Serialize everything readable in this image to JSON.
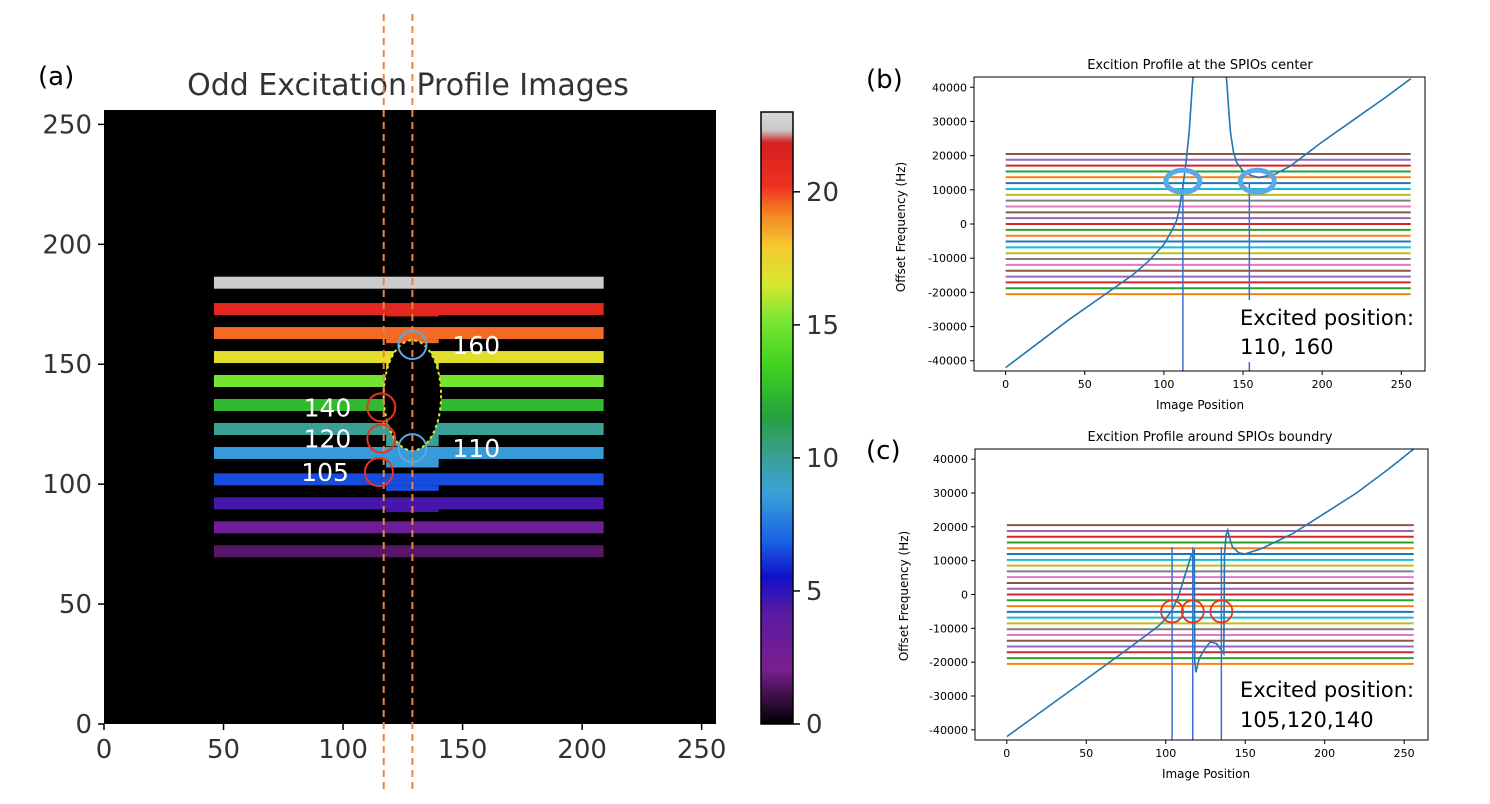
{
  "colors": {
    "axis": "#000000",
    "curve": "#1f77b4",
    "guide_line": "#3a6fd0",
    "dashed": "#e8864a",
    "red_circle": "#e8341c",
    "blue_circle": "#5aa9e6",
    "image_bg": "#000000",
    "label_white": "#ffffff"
  },
  "chart_data": [
    {
      "id": "a",
      "type": "heatmap",
      "panel_label": "(a)",
      "title": "Odd Excitation Profile Images",
      "xlim": [
        0,
        256
      ],
      "ylim": [
        0,
        256
      ],
      "xticks": [
        0,
        50,
        100,
        150,
        200,
        250
      ],
      "yticks": [
        0,
        50,
        100,
        150,
        200,
        250
      ],
      "band_x_range": [
        46,
        209
      ],
      "band_thickness": 5,
      "bands": [
        {
          "y": 72,
          "value": 1.5
        },
        {
          "y": 82,
          "value": 3.0
        },
        {
          "y": 92,
          "value": 4.5
        },
        {
          "y": 102,
          "value": 6.5
        },
        {
          "y": 113,
          "value": 8.5
        },
        {
          "y": 123,
          "value": 10.0
        },
        {
          "y": 133,
          "value": 12.5
        },
        {
          "y": 143,
          "value": 15.0
        },
        {
          "y": 153,
          "value": 17.0
        },
        {
          "y": 163,
          "value": 19.5
        },
        {
          "y": 173,
          "value": 21.0
        },
        {
          "y": 184,
          "value": 22.5
        }
      ],
      "colorbar": {
        "range": [
          0,
          23
        ],
        "ticks": [
          0,
          5,
          10,
          15,
          20
        ]
      },
      "dashed_lines_x": [
        117,
        129
      ],
      "red_circles": [
        {
          "x": 116,
          "y": 132,
          "label": "140"
        },
        {
          "x": 116,
          "y": 119,
          "label": "120"
        },
        {
          "x": 115,
          "y": 105,
          "label": "105"
        }
      ],
      "blue_circles": [
        {
          "x": 129,
          "y": 158,
          "label": "160"
        },
        {
          "x": 129,
          "y": 115,
          "label": "110"
        }
      ]
    },
    {
      "id": "b",
      "type": "line",
      "panel_label": "(b)",
      "title": "Excition Profile at the SPIOs center",
      "xlabel": "Image Position",
      "ylabel": "Offset Frequency (Hz)",
      "xlim": [
        -20,
        265
      ],
      "ylim": [
        -43000,
        43000
      ],
      "xticks": [
        0,
        50,
        100,
        150,
        200,
        250
      ],
      "yticks": [
        -40000,
        -30000,
        -20000,
        -10000,
        0,
        10000,
        20000,
        30000,
        40000
      ],
      "hlines": {
        "x_range": [
          0,
          256
        ],
        "start": -20500,
        "step": 1708,
        "count": 25
      },
      "curve_segments": [
        [
          [
            0,
            -42000
          ],
          [
            20,
            -35000
          ],
          [
            40,
            -28000
          ],
          [
            60,
            -21500
          ],
          [
            80,
            -15000
          ],
          [
            90,
            -11000
          ],
          [
            100,
            -6000
          ],
          [
            105,
            -2000
          ],
          [
            108,
            1000
          ],
          [
            110,
            5000
          ],
          [
            112,
            11000
          ],
          [
            114,
            18000
          ],
          [
            116,
            27000
          ],
          [
            117,
            34000
          ],
          [
            118,
            41000
          ],
          [
            118.5,
            44000
          ]
        ],
        [
          [
            139.5,
            44000
          ],
          [
            140,
            40000
          ],
          [
            141,
            33000
          ],
          [
            142,
            27000
          ],
          [
            144,
            21000
          ],
          [
            146,
            18000
          ],
          [
            150,
            15500
          ],
          [
            155,
            14200
          ],
          [
            160,
            13600
          ],
          [
            170,
            14500
          ],
          [
            180,
            17000
          ],
          [
            200,
            24000
          ],
          [
            220,
            30500
          ],
          [
            240,
            37000
          ],
          [
            256,
            42500
          ]
        ]
      ],
      "vlines_x": [
        112,
        154
      ],
      "ellipses": [
        {
          "x": 112,
          "y": 12500
        },
        {
          "x": 159,
          "y": 12500
        }
      ],
      "annotation": {
        "line1": "Excited position:",
        "line2": "110, 160"
      }
    },
    {
      "id": "c",
      "type": "line",
      "panel_label": "(c)",
      "title": "Excition Profile around SPIOs boundry",
      "xlabel": "Image Position",
      "ylabel": "Offset Frequency (Hz)",
      "xlim": [
        -20,
        265
      ],
      "ylim": [
        -43000,
        43000
      ],
      "xticks": [
        0,
        50,
        100,
        150,
        200,
        250
      ],
      "yticks": [
        -40000,
        -30000,
        -20000,
        -10000,
        0,
        10000,
        20000,
        30000,
        40000
      ],
      "hlines": {
        "x_range": [
          0,
          256
        ],
        "start": -20500,
        "step": 1708,
        "count": 25
      },
      "curve_segments": [
        [
          [
            0,
            -42000
          ],
          [
            25,
            -33500
          ],
          [
            50,
            -25000
          ],
          [
            75,
            -16500
          ],
          [
            95,
            -9500
          ],
          [
            100,
            -7200
          ],
          [
            104,
            -4600
          ],
          [
            108,
            -500
          ],
          [
            110,
            2500
          ],
          [
            113,
            7000
          ],
          [
            116,
            11500
          ],
          [
            118,
            13000
          ],
          [
            118.3,
            -20000
          ],
          [
            119,
            -23000
          ],
          [
            121,
            -19000
          ],
          [
            124,
            -16500
          ],
          [
            128,
            -14000
          ],
          [
            132,
            -14500
          ],
          [
            135,
            -16500
          ],
          [
            136.5,
            -17500
          ],
          [
            137,
            12000
          ],
          [
            138,
            17500
          ],
          [
            139,
            19000
          ],
          [
            140,
            17000
          ],
          [
            142,
            14000
          ],
          [
            146,
            12300
          ],
          [
            150,
            12000
          ],
          [
            160,
            13500
          ],
          [
            180,
            18000
          ],
          [
            200,
            24000
          ],
          [
            220,
            30000
          ],
          [
            240,
            37000
          ],
          [
            256,
            43000
          ]
        ]
      ],
      "vlines_x": [
        104,
        117,
        135
      ],
      "circles": [
        {
          "x": 104,
          "y": -5000
        },
        {
          "x": 117,
          "y": -5000
        },
        {
          "x": 135,
          "y": -5000
        }
      ],
      "annotation": {
        "line1": "Excited position:",
        "line2": "105,120,140"
      }
    }
  ]
}
